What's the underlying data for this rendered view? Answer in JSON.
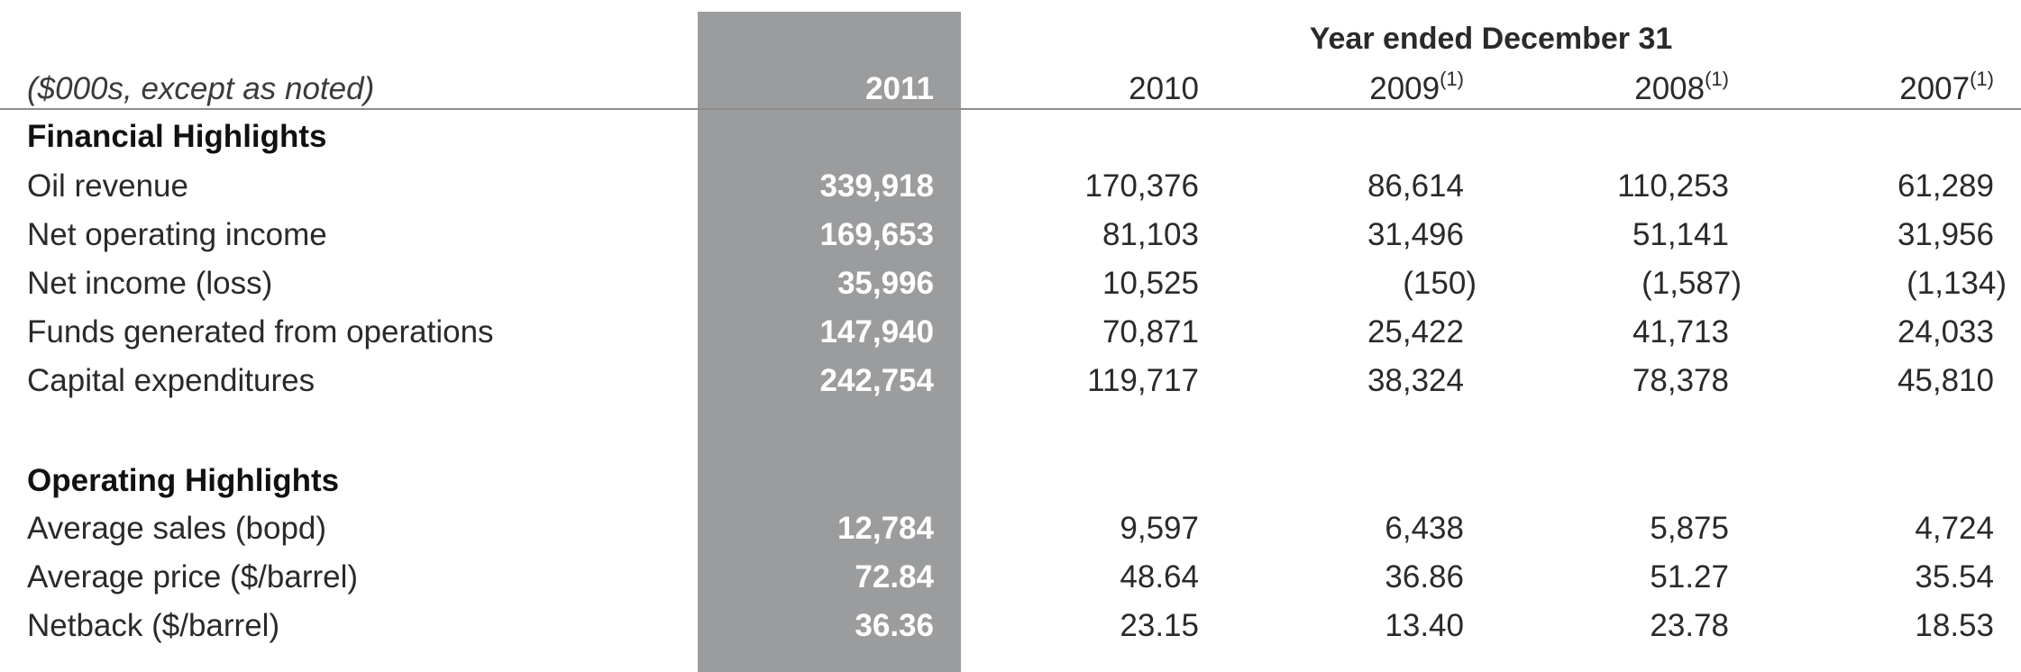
{
  "header": {
    "group_label": "Year ended December 31",
    "units_note": "($000s, except as noted)",
    "columns": [
      {
        "year": "2011",
        "note": ""
      },
      {
        "year": "2010",
        "note": ""
      },
      {
        "year": "2009",
        "note": "(1)"
      },
      {
        "year": "2008",
        "note": "(1)"
      },
      {
        "year": "2007",
        "note": "(1)"
      }
    ]
  },
  "sections": [
    {
      "title": "Financial Highlights",
      "rows": [
        {
          "label": "Oil revenue",
          "values": [
            "339,918",
            "170,376",
            "86,614",
            "110,253",
            "61,289"
          ]
        },
        {
          "label": "Net operating income",
          "values": [
            "169,653",
            "81,103",
            "31,496",
            "51,141",
            "31,956"
          ]
        },
        {
          "label": "Net income (loss)",
          "values": [
            "35,996",
            "10,525",
            "(150)",
            "(1,587)",
            "(1,134)"
          ]
        },
        {
          "label": "Funds generated from operations",
          "values": [
            "147,940",
            "70,871",
            "25,422",
            "41,713",
            "24,033"
          ]
        },
        {
          "label": "Capital expenditures",
          "values": [
            "242,754",
            "119,717",
            "38,324",
            "78,378",
            "45,810"
          ]
        }
      ]
    },
    {
      "title": "Operating Highlights",
      "rows": [
        {
          "label": "Average sales (bopd)",
          "values": [
            "12,784",
            "9,597",
            "6,438",
            "5,875",
            "4,724"
          ]
        },
        {
          "label": "Average price ($/barrel)",
          "values": [
            "72.84",
            "48.64",
            "36.86",
            "51.27",
            "35.54"
          ]
        },
        {
          "label": "Netback ($/barrel)",
          "values": [
            "36.36",
            "23.15",
            "13.40",
            "23.78",
            "18.53"
          ]
        }
      ]
    }
  ],
  "colors": {
    "highlight_column": "#9b9c9e",
    "highlight_text": "#ffffff",
    "rule": "#8d8d8d"
  }
}
